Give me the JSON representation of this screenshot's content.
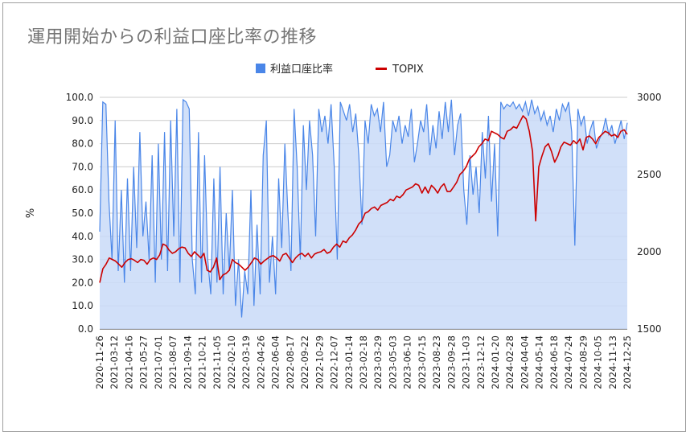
{
  "chart_data": {
    "type": "area+line",
    "title": "運用開始からの利益口座比率の推移",
    "legend": {
      "position": "top",
      "entries": [
        {
          "name": "利益口座比率",
          "color": "#4a86e8",
          "swatch": "square"
        },
        {
          "name": "TOPIX",
          "color": "#cc0000",
          "swatch": "line"
        }
      ]
    },
    "y_left": {
      "label": "%",
      "range": [
        0,
        100
      ],
      "ticks": [
        "0.0",
        "10.0",
        "20.0",
        "30.0",
        "40.0",
        "50.0",
        "60.0",
        "70.0",
        "80.0",
        "90.0",
        "100.0"
      ]
    },
    "y_right": {
      "label": "",
      "range": [
        1500,
        3000
      ],
      "ticks": [
        "1500",
        "2000",
        "2500",
        "3000"
      ]
    },
    "x_ticks": [
      "2020-11-26",
      "2021-03-12",
      "2021-04-16",
      "2021-05-27",
      "2021-07-01",
      "2021-08-07",
      "2021-09-14",
      "2021-10-21",
      "2021-11-05",
      "2022-02-10",
      "2022-03-19",
      "2022-04-26",
      "2022-06-04",
      "2022-08-17",
      "2022-09-22",
      "2022-10-29",
      "2022-12-07",
      "2023-01-14",
      "2023-02-18",
      "2023-03-29",
      "2023-05-03",
      "2023-06-10",
      "2023-07-15",
      "2023-08-23",
      "2023-09-28",
      "2023-11-03",
      "2023-12-12",
      "2024-01-20",
      "2024-02-28",
      "2024-04-04",
      "2024-05-14",
      "2024-06-18",
      "2024-07-24",
      "2024-08-29",
      "2024-10-05",
      "2024-11-13",
      "2024-12-25"
    ],
    "series": [
      {
        "name": "利益口座比率",
        "axis": "left",
        "style": "area",
        "values": [
          42,
          98,
          97,
          55,
          30,
          90,
          25,
          60,
          20,
          65,
          25,
          70,
          35,
          85,
          40,
          55,
          30,
          75,
          20,
          80,
          30,
          85,
          25,
          90,
          40,
          95,
          20,
          99,
          98,
          95,
          30,
          15,
          85,
          20,
          75,
          30,
          15,
          65,
          20,
          70,
          15,
          50,
          25,
          60,
          10,
          30,
          5,
          25,
          15,
          60,
          10,
          45,
          15,
          75,
          90,
          20,
          40,
          15,
          65,
          35,
          80,
          50,
          25,
          95,
          70,
          30,
          88,
          60,
          90,
          75,
          40,
          95,
          85,
          92,
          80,
          97,
          70,
          30,
          98,
          94,
          90,
          97,
          85,
          93,
          75,
          45,
          90,
          80,
          97,
          92,
          95,
          85,
          98,
          70,
          75,
          90,
          85,
          92,
          80,
          88,
          83,
          95,
          72,
          80,
          90,
          85,
          97,
          75,
          88,
          78,
          94,
          82,
          98,
          85,
          99,
          75,
          88,
          93,
          60,
          45,
          75,
          58,
          70,
          50,
          85,
          65,
          92,
          55,
          80,
          40,
          98,
          95,
          97,
          96,
          98,
          95,
          97,
          94,
          98,
          92,
          99,
          93,
          96,
          90,
          94,
          88,
          92,
          85,
          95,
          90,
          97,
          94,
          98,
          85,
          36,
          95,
          88,
          92,
          80,
          86,
          90,
          78,
          82,
          85,
          91,
          84,
          88,
          80,
          85,
          90,
          82,
          89
        ],
        "trend": "volatile 5-99, dense in 2021-2022, mostly 80-99 from 2023"
      },
      {
        "name": "TOPIX",
        "axis": "right",
        "style": "line",
        "values": [
          1800,
          1890,
          1920,
          1960,
          1950,
          1940,
          1920,
          1900,
          1930,
          1950,
          1955,
          1945,
          1930,
          1950,
          1945,
          1920,
          1950,
          1960,
          1950,
          1980,
          2050,
          2040,
          2010,
          1990,
          2000,
          2020,
          2030,
          2025,
          1990,
          1970,
          2000,
          1980,
          1960,
          1990,
          1880,
          1870,
          1900,
          1960,
          1820,
          1850,
          1860,
          1880,
          1950,
          1930,
          1920,
          1900,
          1880,
          1900,
          1930,
          1960,
          1950,
          1920,
          1940,
          1955,
          1970,
          1975,
          1960,
          1940,
          1980,
          1990,
          1960,
          1930,
          1960,
          1980,
          1990,
          1970,
          1990,
          1960,
          1985,
          1995,
          2000,
          2015,
          1990,
          2000,
          2030,
          2050,
          2030,
          2070,
          2060,
          2090,
          2110,
          2140,
          2180,
          2200,
          2250,
          2260,
          2280,
          2290,
          2270,
          2300,
          2310,
          2320,
          2340,
          2330,
          2360,
          2350,
          2370,
          2400,
          2410,
          2420,
          2440,
          2430,
          2380,
          2420,
          2380,
          2430,
          2410,
          2380,
          2420,
          2440,
          2390,
          2390,
          2420,
          2450,
          2500,
          2520,
          2550,
          2600,
          2620,
          2640,
          2680,
          2700,
          2730,
          2720,
          2780,
          2770,
          2760,
          2740,
          2730,
          2780,
          2790,
          2810,
          2800,
          2840,
          2880,
          2860,
          2780,
          2650,
          2200,
          2550,
          2620,
          2680,
          2700,
          2650,
          2580,
          2620,
          2680,
          2710,
          2700,
          2690,
          2720,
          2700,
          2730,
          2660,
          2740,
          2750,
          2730,
          2700,
          2740,
          2760,
          2780,
          2770,
          2750,
          2760,
          2740,
          2780,
          2790,
          2760
        ]
      }
    ]
  }
}
